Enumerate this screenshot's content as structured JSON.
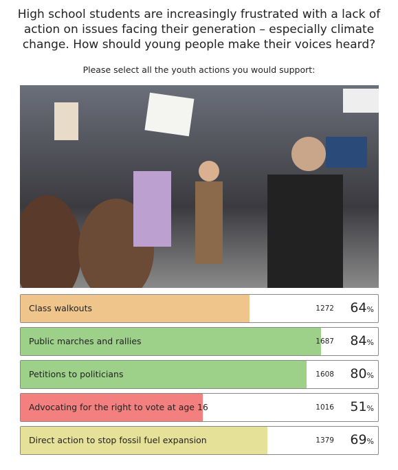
{
  "title": "High school students are increasingly frustrated with a lack of action on issues facing their generation – especially climate change. How should young people make their voices heard?",
  "subtitle": "Please select all the youth actions you would support:",
  "percent_unit": "%",
  "options": [
    {
      "label": "Class walkouts",
      "count": 1272,
      "percent": 64,
      "color": "#f0c58b"
    },
    {
      "label": "Public marches and rallies",
      "count": 1687,
      "percent": 84,
      "color": "#9dd18a"
    },
    {
      "label": "Petitions to politicians",
      "count": 1608,
      "percent": 80,
      "color": "#9dd18a"
    },
    {
      "label": "Advocating for the right to vote at age 16",
      "count": 1016,
      "percent": 51,
      "color": "#f47f7f"
    },
    {
      "label": "Direct action to stop fossil fuel expansion",
      "count": 1379,
      "percent": 69,
      "color": "#e6e198"
    }
  ]
}
